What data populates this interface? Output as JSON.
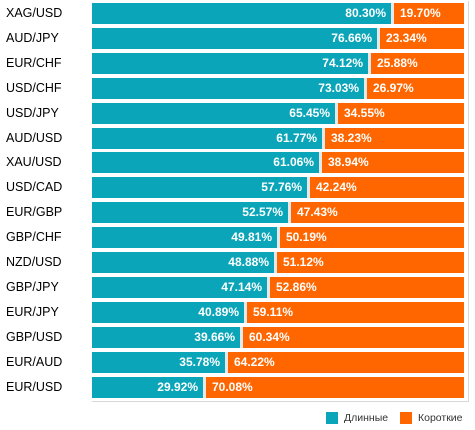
{
  "chart_data": {
    "type": "bar",
    "stacked": true,
    "orientation": "horizontal",
    "categories": [
      "XAG/USD",
      "AUD/JPY",
      "EUR/CHF",
      "USD/CHF",
      "USD/JPY",
      "AUD/USD",
      "XAU/USD",
      "USD/CAD",
      "EUR/GBP",
      "GBP/CHF",
      "NZD/USD",
      "GBP/JPY",
      "EUR/JPY",
      "GBP/USD",
      "EUR/AUD",
      "EUR/USD"
    ],
    "series": [
      {
        "name": "Длинные",
        "color": "#0aa5b8",
        "values": [
          80.3,
          76.66,
          74.12,
          73.03,
          65.45,
          61.77,
          61.06,
          57.76,
          52.57,
          49.81,
          48.88,
          47.14,
          40.89,
          39.66,
          35.78,
          29.92
        ],
        "labels": [
          "80.30%",
          "76.66%",
          "74.12%",
          "73.03%",
          "65.45%",
          "61.77%",
          "61.06%",
          "57.76%",
          "52.57%",
          "49.81%",
          "48.88%",
          "47.14%",
          "40.89%",
          "39.66%",
          "35.78%",
          "29.92%"
        ]
      },
      {
        "name": "Короткие",
        "color": "#ff6600",
        "values": [
          19.7,
          23.34,
          25.88,
          26.97,
          34.55,
          38.23,
          38.94,
          42.24,
          47.43,
          50.19,
          51.12,
          52.86,
          59.11,
          60.34,
          64.22,
          70.08
        ],
        "labels": [
          "19.70%",
          "23.34%",
          "25.88%",
          "26.97%",
          "34.55%",
          "38.23%",
          "38.94%",
          "42.24%",
          "47.43%",
          "50.19%",
          "51.12%",
          "52.86%",
          "59.11%",
          "60.34%",
          "64.22%",
          "70.08%"
        ]
      }
    ],
    "xlim": [
      0,
      100
    ],
    "legend_position": "bottom-right",
    "grid": false
  }
}
